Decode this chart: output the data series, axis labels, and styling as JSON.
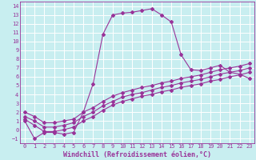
{
  "xlabel": "Windchill (Refroidissement éolien,°C)",
  "bg_color": "#c8eef0",
  "grid_color": "#ffffff",
  "line_color": "#993399",
  "xlim": [
    -0.5,
    23.5
  ],
  "ylim": [
    -1.5,
    14.5
  ],
  "xticks": [
    0,
    1,
    2,
    3,
    4,
    5,
    6,
    7,
    8,
    9,
    10,
    11,
    12,
    13,
    14,
    15,
    16,
    17,
    18,
    19,
    20,
    21,
    22,
    23
  ],
  "yticks": [
    -1,
    0,
    1,
    2,
    3,
    4,
    5,
    6,
    7,
    8,
    9,
    10,
    11,
    12,
    13,
    14
  ],
  "line1_x": [
    0,
    1,
    2,
    3,
    4,
    5,
    6,
    7,
    8,
    9,
    10,
    11,
    12,
    13,
    14,
    15,
    16,
    17,
    18,
    19,
    20,
    21,
    22,
    23
  ],
  "line1_y": [
    1.0,
    -1.0,
    -0.3,
    -0.3,
    -0.5,
    -0.3,
    2.0,
    5.2,
    10.8,
    13.0,
    13.2,
    13.3,
    13.5,
    13.7,
    13.0,
    12.2,
    8.5,
    6.8,
    6.7,
    7.0,
    7.3,
    6.5,
    6.3,
    5.8
  ],
  "line2_x": [
    0,
    1,
    2,
    3,
    4,
    5,
    6,
    7,
    8,
    9,
    10,
    11,
    12,
    13,
    14,
    15,
    16,
    17,
    18,
    19,
    20,
    21,
    22,
    23
  ],
  "line2_y": [
    2.0,
    1.5,
    0.8,
    0.8,
    1.0,
    1.2,
    2.0,
    2.5,
    3.2,
    3.8,
    4.2,
    4.5,
    4.8,
    5.0,
    5.3,
    5.5,
    5.8,
    6.0,
    6.2,
    6.5,
    6.8,
    7.0,
    7.2,
    7.5
  ],
  "line3_x": [
    0,
    1,
    2,
    3,
    4,
    5,
    6,
    7,
    8,
    9,
    10,
    11,
    12,
    13,
    14,
    15,
    16,
    17,
    18,
    19,
    20,
    21,
    22,
    23
  ],
  "line3_y": [
    1.5,
    1.0,
    0.3,
    0.3,
    0.5,
    0.8,
    1.5,
    2.0,
    2.7,
    3.2,
    3.7,
    4.0,
    4.2,
    4.5,
    4.8,
    5.0,
    5.3,
    5.5,
    5.7,
    6.0,
    6.3,
    6.5,
    6.7,
    7.0
  ],
  "line4_x": [
    0,
    1,
    2,
    3,
    4,
    5,
    6,
    7,
    8,
    9,
    10,
    11,
    12,
    13,
    14,
    15,
    16,
    17,
    18,
    19,
    20,
    21,
    22,
    23
  ],
  "line4_y": [
    1.2,
    0.5,
    -0.2,
    -0.2,
    0.0,
    0.3,
    1.0,
    1.5,
    2.2,
    2.8,
    3.2,
    3.5,
    3.8,
    4.0,
    4.3,
    4.5,
    4.8,
    5.0,
    5.2,
    5.5,
    5.7,
    6.0,
    6.2,
    6.5
  ],
  "figsize": [
    3.2,
    2.0
  ],
  "dpi": 100,
  "tick_fontsize": 5,
  "xlabel_fontsize": 6,
  "lw": 0.8,
  "ms": 2.0
}
